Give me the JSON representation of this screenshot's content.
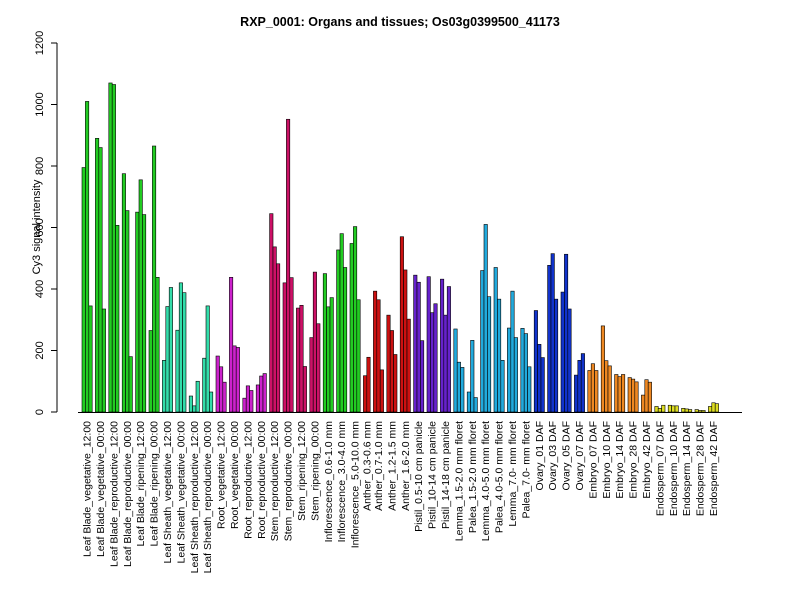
{
  "chart_data": {
    "type": "bar",
    "title": "RXP_0001: Organs and tissues; Os03g0399500_41173",
    "xlabel": "",
    "ylabel": "Cy3 signal intensity",
    "ylim": [
      0,
      1200
    ],
    "yticks": [
      0,
      200,
      400,
      600,
      800,
      1000,
      1200
    ],
    "grid": false,
    "legend": "none",
    "groups": [
      {
        "label": "Leaf Blade_vegetative_12:00",
        "color": "#22cc22",
        "values": [
          795,
          1010,
          345
        ]
      },
      {
        "label": "Leaf Blade_vegetative_00:00",
        "color": "#22cc22",
        "values": [
          890,
          860,
          335
        ]
      },
      {
        "label": "Leaf Blade_reproductive_12:00",
        "color": "#22cc22",
        "values": [
          1070,
          1065,
          607
        ]
      },
      {
        "label": "Leaf Blade_reproductive_00:00",
        "color": "#22cc22",
        "values": [
          775,
          655,
          180
        ]
      },
      {
        "label": "Leaf Blade_ripening_12:00",
        "color": "#22cc22",
        "values": [
          650,
          755,
          642
        ]
      },
      {
        "label": "Leaf Blade_ripening_00:00",
        "color": "#22cc22",
        "values": [
          265,
          865,
          438
        ]
      },
      {
        "label": "Leaf Sheath_vegetative_12:00",
        "color": "#33ddaa",
        "values": [
          168,
          343,
          405
        ]
      },
      {
        "label": "Leaf Sheath_vegetative_00:00",
        "color": "#33ddaa",
        "values": [
          266,
          420,
          388
        ]
      },
      {
        "label": "Leaf Sheath_reproductive_12:00",
        "color": "#33ddaa",
        "values": [
          52,
          20,
          100
        ]
      },
      {
        "label": "Leaf Sheath_reproductive_00:00",
        "color": "#33ddaa",
        "values": [
          175,
          345,
          65
        ]
      },
      {
        "label": "Root_vegetative_12:00",
        "color": "#cc22cc",
        "values": [
          182,
          147,
          97
        ]
      },
      {
        "label": "Root_vegetative_00:00",
        "color": "#cc22cc",
        "values": [
          438,
          215,
          210
        ]
      },
      {
        "label": "Root_reproductive_12:00",
        "color": "#cc22cc",
        "values": [
          45,
          85,
          70
        ]
      },
      {
        "label": "Root_reproductive_00:00",
        "color": "#cc22cc",
        "values": [
          88,
          117,
          125
        ]
      },
      {
        "label": "Stem_reproductive_12:00",
        "color": "#cc1166",
        "values": [
          645,
          537,
          482
        ]
      },
      {
        "label": "Stem_reproductive_00:00",
        "color": "#cc1166",
        "values": [
          420,
          952,
          437
        ]
      },
      {
        "label": "Stem_ripening_12:00",
        "color": "#cc1166",
        "values": [
          338,
          347,
          148
        ]
      },
      {
        "label": "Stem_ripening_00:00",
        "color": "#cc1166",
        "values": [
          242,
          455,
          287
        ]
      },
      {
        "label": "Inflorescence_0.6-1.0 mm",
        "color": "#22cc22",
        "values": [
          450,
          342,
          372
        ]
      },
      {
        "label": "Inflorescence_3.0-4.0 mm",
        "color": "#22cc22",
        "values": [
          527,
          580,
          470
        ]
      },
      {
        "label": "Inflorescence_5.0-10.0 mm",
        "color": "#22cc22",
        "values": [
          548,
          603,
          365
        ]
      },
      {
        "label": "Anther_0.3-0.6 mm",
        "color": "#cc1111",
        "values": [
          118,
          178
        ]
      },
      {
        "label": "Anther_0.7-1.0 mm",
        "color": "#cc1111",
        "values": [
          393,
          365,
          137
        ]
      },
      {
        "label": "Anther_1.2-1.5 mm",
        "color": "#cc1111",
        "values": [
          315,
          265,
          187
        ]
      },
      {
        "label": "Anther_1.6-2.0 mm",
        "color": "#cc1111",
        "values": [
          570,
          462,
          302
        ]
      },
      {
        "label": "Pistil_0.5-10 cm panicle",
        "color": "#6622cc",
        "values": [
          445,
          422,
          232
        ]
      },
      {
        "label": "Pistil_10-14 cm panicle",
        "color": "#6622cc",
        "values": [
          440,
          323,
          352
        ]
      },
      {
        "label": "Pistil_14-18 cm panicle",
        "color": "#6622cc",
        "values": [
          432,
          315,
          408
        ]
      },
      {
        "label": "Lemma_1.5-2.0 mm floret",
        "color": "#22aadd",
        "values": [
          270,
          162,
          145
        ]
      },
      {
        "label": "Palea_1.5-2.0 mm floret",
        "color": "#22aadd",
        "values": [
          65,
          233,
          47
        ]
      },
      {
        "label": "Lemma_4.0-5.0 mm floret",
        "color": "#22aadd",
        "values": [
          460,
          610,
          375
        ]
      },
      {
        "label": "Palea_4.0-5.0 mm floret",
        "color": "#22aadd",
        "values": [
          470,
          367,
          168
        ]
      },
      {
        "label": "Lemma_7.0- mm floret",
        "color": "#22aadd",
        "values": [
          273,
          393,
          242
        ]
      },
      {
        "label": "Palea_7.0- mm floret",
        "color": "#22aadd",
        "values": [
          272,
          255,
          147
        ]
      },
      {
        "label": "Ovary_01 DAF",
        "color": "#1133cc",
        "values": [
          330,
          220,
          177
        ]
      },
      {
        "label": "Ovary_03 DAF",
        "color": "#1133cc",
        "values": [
          477,
          515,
          367
        ]
      },
      {
        "label": "Ovary_05 DAF",
        "color": "#1133cc",
        "values": [
          390,
          513,
          335
        ]
      },
      {
        "label": "Ovary_07 DAF",
        "color": "#1133cc",
        "values": [
          120,
          168,
          190
        ]
      },
      {
        "label": "Embryo_07 DAF",
        "color": "#ee8822",
        "values": [
          135,
          157,
          135
        ]
      },
      {
        "label": "Embryo_10 DAF",
        "color": "#ee8822",
        "values": [
          280,
          167,
          150
        ]
      },
      {
        "label": "Embryo_14 DAF",
        "color": "#ee8822",
        "values": [
          122,
          115,
          122
        ]
      },
      {
        "label": "Embryo_28 DAF",
        "color": "#ee8822",
        "values": [
          112,
          107,
          98
        ]
      },
      {
        "label": "Embryo_42 DAF",
        "color": "#ee8822",
        "values": [
          55,
          105,
          97
        ]
      },
      {
        "label": "Endosperm_07 DAF",
        "color": "#dddd22",
        "values": [
          18,
          12,
          22
        ]
      },
      {
        "label": "Endosperm_10 DAF",
        "color": "#dddd22",
        "values": [
          22,
          20,
          20
        ]
      },
      {
        "label": "Endosperm_14 DAF",
        "color": "#dddd22",
        "values": [
          12,
          10,
          8
        ]
      },
      {
        "label": "Endosperm_28 DAF",
        "color": "#dddd22",
        "values": [
          8,
          5,
          5
        ]
      },
      {
        "label": "Endosperm_42 DAF",
        "color": "#dddd22",
        "values": [
          18,
          30,
          27
        ]
      }
    ]
  }
}
